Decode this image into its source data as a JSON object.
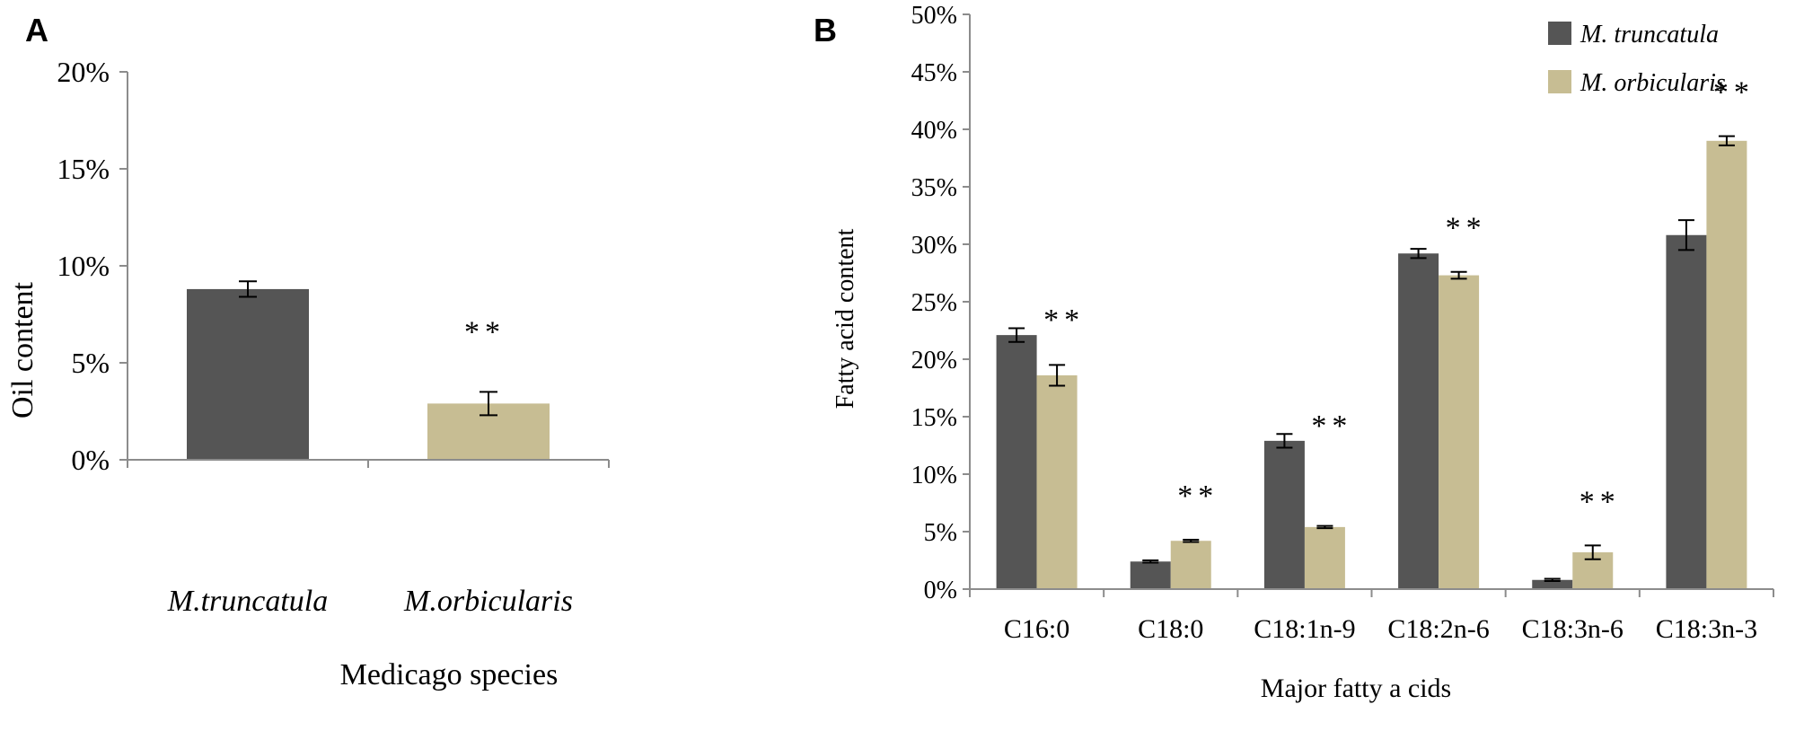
{
  "colors": {
    "series_dark": "#555555",
    "series_tan": "#c7bd93",
    "axis": "#8c8c8c",
    "text": "#000000"
  },
  "chart_data": [
    {
      "panel": "A",
      "type": "bar",
      "title": "",
      "xlabel": "Medicago species",
      "ylabel": "Oil content",
      "ylim": [
        0,
        0.2
      ],
      "yticks": [
        0,
        0.05,
        0.1,
        0.15,
        0.2
      ],
      "ytick_labels": [
        "0%",
        "5%",
        "10%",
        "15%",
        "20%"
      ],
      "categories": [
        "M.truncatula",
        "M.orbicularis"
      ],
      "values": [
        0.088,
        0.029
      ],
      "errors": [
        0.004,
        0.006
      ],
      "bar_colors": [
        "#555555",
        "#c7bd93"
      ],
      "annotations": [
        "",
        "**"
      ]
    },
    {
      "panel": "B",
      "type": "bar",
      "title": "",
      "xlabel": "Major fatty a cids",
      "ylabel": "Fatty acid content",
      "ylim": [
        0,
        0.5
      ],
      "yticks": [
        0,
        0.05,
        0.1,
        0.15,
        0.2,
        0.25,
        0.3,
        0.35,
        0.4,
        0.45,
        0.5
      ],
      "ytick_labels": [
        "0%",
        "5%",
        "10%",
        "15%",
        "20%",
        "25%",
        "30%",
        "35%",
        "40%",
        "45%",
        "50%"
      ],
      "categories": [
        "C16:0",
        "C18:0",
        "C18:1n-9",
        "C18:2n-6",
        "C18:3n-6",
        "C18:3n-3"
      ],
      "series": [
        {
          "name": "M. truncatula",
          "color": "#555555",
          "values": [
            0.221,
            0.024,
            0.129,
            0.292,
            0.008,
            0.308
          ],
          "errors": [
            0.006,
            0.001,
            0.006,
            0.004,
            0.001,
            0.013
          ]
        },
        {
          "name": "M. orbicularis",
          "color": "#c7bd93",
          "values": [
            0.186,
            0.042,
            0.054,
            0.273,
            0.032,
            0.39
          ],
          "errors": [
            0.009,
            0.001,
            0.001,
            0.003,
            0.006,
            0.004
          ]
        }
      ],
      "annotations": [
        "**",
        "**",
        "**",
        "**",
        "**",
        "**"
      ],
      "legend_position": "top-right"
    }
  ]
}
